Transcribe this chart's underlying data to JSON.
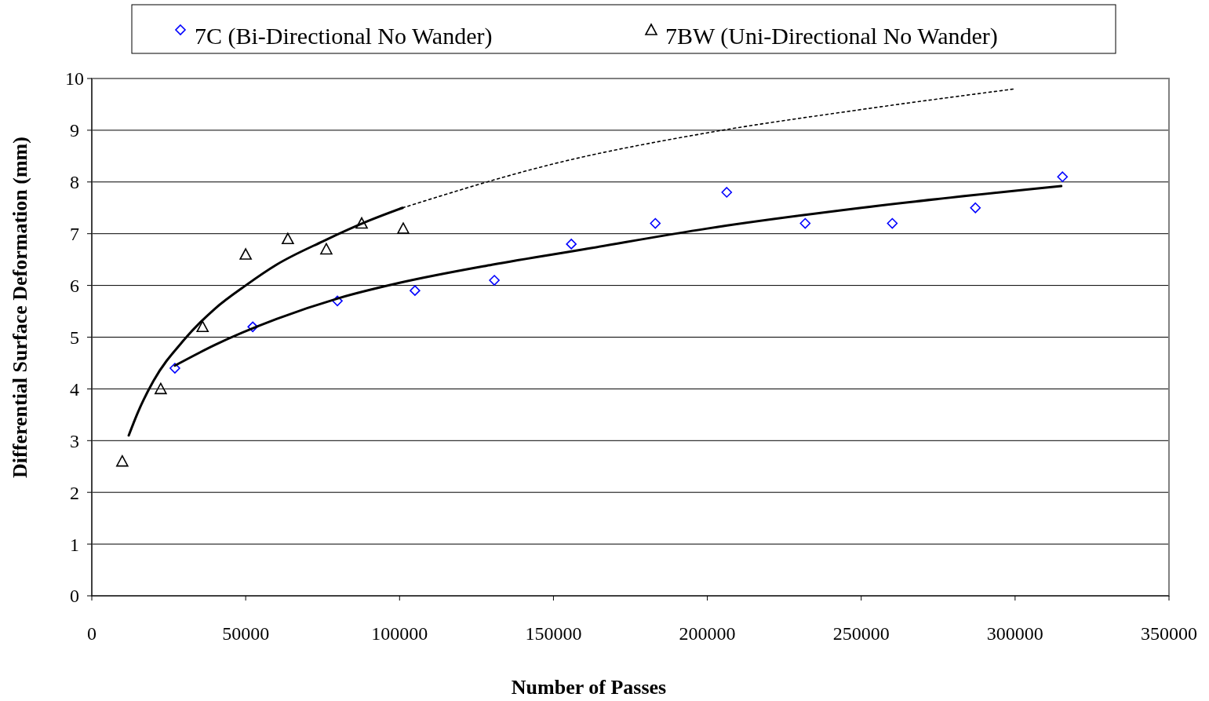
{
  "chart_data": {
    "type": "scatter",
    "xlabel": "Number of Passes",
    "ylabel": "Differential Surface Deformation (mm)",
    "xlim": [
      0,
      350000
    ],
    "xticks": [
      0,
      50000,
      100000,
      150000,
      200000,
      250000,
      300000,
      350000
    ],
    "ylim": [
      0,
      10
    ],
    "yticks": [
      0,
      1,
      2,
      3,
      4,
      5,
      6,
      7,
      8,
      9,
      10
    ],
    "grid": "y",
    "legend": "top",
    "series": [
      {
        "name": "7C (Bi-Directional No Wander)",
        "marker": "diamond",
        "color": "#0000ff",
        "x": [
          27000,
          52300,
          79800,
          105000,
          130800,
          155800,
          183100,
          206300,
          231800,
          260100,
          287100,
          315400
        ],
        "values": [
          4.4,
          5.2,
          5.7,
          5.9,
          6.1,
          6.8,
          7.2,
          7.8,
          7.2,
          7.2,
          7.5,
          8.1
        ]
      },
      {
        "name": "7BW (Uni-Directional No Wander)",
        "marker": "triangle",
        "color": "#000000",
        "x": [
          9900,
          22400,
          36000,
          50000,
          63700,
          76200,
          87700,
          101200
        ],
        "values": [
          2.6,
          4.0,
          5.2,
          6.6,
          6.9,
          6.7,
          7.2,
          7.1
        ]
      },
      {
        "type": "line",
        "marker": "none",
        "line_style": "solid",
        "color": "#000000",
        "x": [
          27000,
          40000,
          60000,
          80000,
          100000,
          130000,
          160000,
          200000,
          250000,
          315000
        ],
        "values": [
          4.45,
          4.85,
          5.35,
          5.75,
          6.05,
          6.4,
          6.7,
          7.1,
          7.5,
          7.92
        ]
      },
      {
        "type": "line",
        "marker": "none",
        "line_style": "solid",
        "color": "#000000",
        "x": [
          12000,
          15000,
          20000,
          30000,
          40000,
          50000,
          60000,
          75000,
          90000,
          101000
        ],
        "values": [
          3.1,
          3.55,
          4.15,
          4.95,
          5.55,
          6.0,
          6.4,
          6.85,
          7.25,
          7.5
        ]
      },
      {
        "type": "line",
        "marker": "none",
        "line_style": "dotted",
        "color": "#000000",
        "x": [
          101000,
          150000,
          200000,
          250000,
          300000
        ],
        "values": [
          7.5,
          8.35,
          8.95,
          9.4,
          9.8
        ]
      }
    ]
  }
}
